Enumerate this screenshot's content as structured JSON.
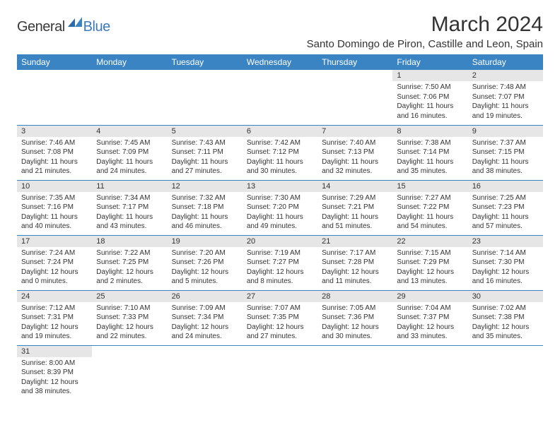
{
  "logo": {
    "general": "General",
    "blue": "Blue"
  },
  "title": "March 2024",
  "location": "Santo Domingo de Piron, Castille and Leon, Spain",
  "headers": [
    "Sunday",
    "Monday",
    "Tuesday",
    "Wednesday",
    "Thursday",
    "Friday",
    "Saturday"
  ],
  "colors": {
    "header_bg": "#3a84c4",
    "header_text": "#ffffff",
    "daynum_bg": "#e6e6e6",
    "cell_border": "#3a84c4",
    "logo_blue": "#3a7bbf",
    "text": "#333333",
    "background": "#ffffff"
  },
  "typography": {
    "month_title_size": 30,
    "location_size": 15,
    "header_size": 12,
    "daynum_size": 11,
    "body_size": 10
  },
  "layout": {
    "columns": 7,
    "rows": 6,
    "start_day_index": 5
  },
  "weeks": [
    [
      null,
      null,
      null,
      null,
      null,
      {
        "n": "1",
        "sr": "Sunrise: 7:50 AM",
        "ss": "Sunset: 7:06 PM",
        "d1": "Daylight: 11 hours",
        "d2": "and 16 minutes."
      },
      {
        "n": "2",
        "sr": "Sunrise: 7:48 AM",
        "ss": "Sunset: 7:07 PM",
        "d1": "Daylight: 11 hours",
        "d2": "and 19 minutes."
      }
    ],
    [
      {
        "n": "3",
        "sr": "Sunrise: 7:46 AM",
        "ss": "Sunset: 7:08 PM",
        "d1": "Daylight: 11 hours",
        "d2": "and 21 minutes."
      },
      {
        "n": "4",
        "sr": "Sunrise: 7:45 AM",
        "ss": "Sunset: 7:09 PM",
        "d1": "Daylight: 11 hours",
        "d2": "and 24 minutes."
      },
      {
        "n": "5",
        "sr": "Sunrise: 7:43 AM",
        "ss": "Sunset: 7:11 PM",
        "d1": "Daylight: 11 hours",
        "d2": "and 27 minutes."
      },
      {
        "n": "6",
        "sr": "Sunrise: 7:42 AM",
        "ss": "Sunset: 7:12 PM",
        "d1": "Daylight: 11 hours",
        "d2": "and 30 minutes."
      },
      {
        "n": "7",
        "sr": "Sunrise: 7:40 AM",
        "ss": "Sunset: 7:13 PM",
        "d1": "Daylight: 11 hours",
        "d2": "and 32 minutes."
      },
      {
        "n": "8",
        "sr": "Sunrise: 7:38 AM",
        "ss": "Sunset: 7:14 PM",
        "d1": "Daylight: 11 hours",
        "d2": "and 35 minutes."
      },
      {
        "n": "9",
        "sr": "Sunrise: 7:37 AM",
        "ss": "Sunset: 7:15 PM",
        "d1": "Daylight: 11 hours",
        "d2": "and 38 minutes."
      }
    ],
    [
      {
        "n": "10",
        "sr": "Sunrise: 7:35 AM",
        "ss": "Sunset: 7:16 PM",
        "d1": "Daylight: 11 hours",
        "d2": "and 40 minutes."
      },
      {
        "n": "11",
        "sr": "Sunrise: 7:34 AM",
        "ss": "Sunset: 7:17 PM",
        "d1": "Daylight: 11 hours",
        "d2": "and 43 minutes."
      },
      {
        "n": "12",
        "sr": "Sunrise: 7:32 AM",
        "ss": "Sunset: 7:18 PM",
        "d1": "Daylight: 11 hours",
        "d2": "and 46 minutes."
      },
      {
        "n": "13",
        "sr": "Sunrise: 7:30 AM",
        "ss": "Sunset: 7:20 PM",
        "d1": "Daylight: 11 hours",
        "d2": "and 49 minutes."
      },
      {
        "n": "14",
        "sr": "Sunrise: 7:29 AM",
        "ss": "Sunset: 7:21 PM",
        "d1": "Daylight: 11 hours",
        "d2": "and 51 minutes."
      },
      {
        "n": "15",
        "sr": "Sunrise: 7:27 AM",
        "ss": "Sunset: 7:22 PM",
        "d1": "Daylight: 11 hours",
        "d2": "and 54 minutes."
      },
      {
        "n": "16",
        "sr": "Sunrise: 7:25 AM",
        "ss": "Sunset: 7:23 PM",
        "d1": "Daylight: 11 hours",
        "d2": "and 57 minutes."
      }
    ],
    [
      {
        "n": "17",
        "sr": "Sunrise: 7:24 AM",
        "ss": "Sunset: 7:24 PM",
        "d1": "Daylight: 12 hours",
        "d2": "and 0 minutes."
      },
      {
        "n": "18",
        "sr": "Sunrise: 7:22 AM",
        "ss": "Sunset: 7:25 PM",
        "d1": "Daylight: 12 hours",
        "d2": "and 2 minutes."
      },
      {
        "n": "19",
        "sr": "Sunrise: 7:20 AM",
        "ss": "Sunset: 7:26 PM",
        "d1": "Daylight: 12 hours",
        "d2": "and 5 minutes."
      },
      {
        "n": "20",
        "sr": "Sunrise: 7:19 AM",
        "ss": "Sunset: 7:27 PM",
        "d1": "Daylight: 12 hours",
        "d2": "and 8 minutes."
      },
      {
        "n": "21",
        "sr": "Sunrise: 7:17 AM",
        "ss": "Sunset: 7:28 PM",
        "d1": "Daylight: 12 hours",
        "d2": "and 11 minutes."
      },
      {
        "n": "22",
        "sr": "Sunrise: 7:15 AM",
        "ss": "Sunset: 7:29 PM",
        "d1": "Daylight: 12 hours",
        "d2": "and 13 minutes."
      },
      {
        "n": "23",
        "sr": "Sunrise: 7:14 AM",
        "ss": "Sunset: 7:30 PM",
        "d1": "Daylight: 12 hours",
        "d2": "and 16 minutes."
      }
    ],
    [
      {
        "n": "24",
        "sr": "Sunrise: 7:12 AM",
        "ss": "Sunset: 7:31 PM",
        "d1": "Daylight: 12 hours",
        "d2": "and 19 minutes."
      },
      {
        "n": "25",
        "sr": "Sunrise: 7:10 AM",
        "ss": "Sunset: 7:33 PM",
        "d1": "Daylight: 12 hours",
        "d2": "and 22 minutes."
      },
      {
        "n": "26",
        "sr": "Sunrise: 7:09 AM",
        "ss": "Sunset: 7:34 PM",
        "d1": "Daylight: 12 hours",
        "d2": "and 24 minutes."
      },
      {
        "n": "27",
        "sr": "Sunrise: 7:07 AM",
        "ss": "Sunset: 7:35 PM",
        "d1": "Daylight: 12 hours",
        "d2": "and 27 minutes."
      },
      {
        "n": "28",
        "sr": "Sunrise: 7:05 AM",
        "ss": "Sunset: 7:36 PM",
        "d1": "Daylight: 12 hours",
        "d2": "and 30 minutes."
      },
      {
        "n": "29",
        "sr": "Sunrise: 7:04 AM",
        "ss": "Sunset: 7:37 PM",
        "d1": "Daylight: 12 hours",
        "d2": "and 33 minutes."
      },
      {
        "n": "30",
        "sr": "Sunrise: 7:02 AM",
        "ss": "Sunset: 7:38 PM",
        "d1": "Daylight: 12 hours",
        "d2": "and 35 minutes."
      }
    ],
    [
      {
        "n": "31",
        "sr": "Sunrise: 8:00 AM",
        "ss": "Sunset: 8:39 PM",
        "d1": "Daylight: 12 hours",
        "d2": "and 38 minutes."
      },
      null,
      null,
      null,
      null,
      null,
      null
    ]
  ]
}
